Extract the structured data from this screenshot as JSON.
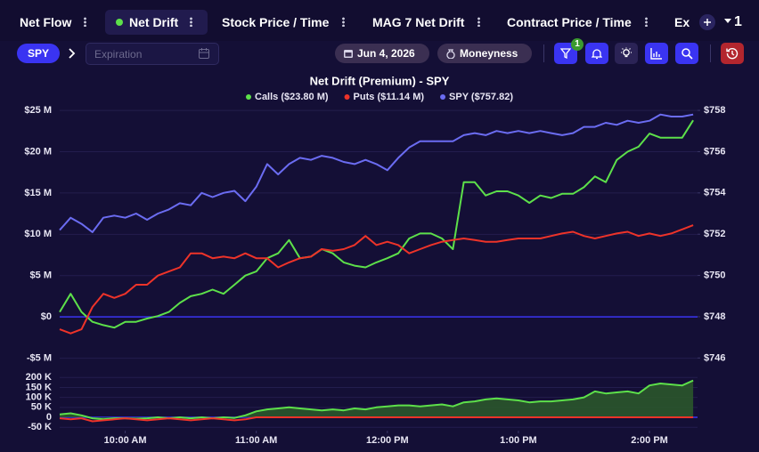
{
  "ui": {
    "tabs": [
      "Net Flow",
      "Net Drift",
      "Stock Price / Time",
      "MAG 7 Net Drift",
      "Contract Price / Time",
      "Ex"
    ],
    "tab_count": "1",
    "ticker": "SPY",
    "expiration_placeholder": "Expiration",
    "date": "Jun 4, 2026",
    "moneyness": "Moneyness",
    "filter_badge": "1"
  },
  "chart_data": [
    {
      "type": "line",
      "title": "Net Drift (Premium) - SPY",
      "grid": true,
      "legend": "top",
      "zero_line_color": "#3a34f2",
      "x": [
        570,
        575,
        580,
        585,
        590,
        595,
        600,
        605,
        610,
        615,
        620,
        625,
        630,
        635,
        640,
        645,
        650,
        655,
        660,
        665,
        670,
        675,
        680,
        685,
        690,
        695,
        700,
        705,
        710,
        715,
        720,
        725,
        730,
        735,
        740,
        745,
        750,
        755,
        760,
        765,
        770,
        775,
        780,
        785,
        790,
        795,
        800,
        805,
        810,
        815,
        820,
        825,
        830,
        835,
        840,
        845,
        850,
        855,
        860
      ],
      "xlim": [
        570,
        862
      ],
      "ylim": [
        -5.8,
        26.3
      ],
      "yticks": [
        {
          "value": -5,
          "label": "-$5 M"
        },
        {
          "value": 0,
          "label": "$0"
        },
        {
          "value": 5,
          "label": "$5 M"
        },
        {
          "value": 10,
          "label": "$10 M"
        },
        {
          "value": 15,
          "label": "$15 M"
        },
        {
          "value": 20,
          "label": "$20 M"
        },
        {
          "value": 25,
          "label": "$25 M"
        }
      ],
      "y2lim": [
        745.67,
        758.52
      ],
      "y2ticks": [
        {
          "value": 746,
          "label": "$746"
        },
        {
          "value": 748,
          "label": "$748"
        },
        {
          "value": 750,
          "label": "$750"
        },
        {
          "value": 752,
          "label": "$752"
        },
        {
          "value": 754,
          "label": "$754"
        },
        {
          "value": 756,
          "label": "$756"
        },
        {
          "value": 758,
          "label": "$758"
        }
      ],
      "series": [
        {
          "name": "Calls ($23.80 M)",
          "color": "#5de04a",
          "values": [
            0.6,
            2.8,
            0.6,
            -0.6,
            -1,
            -1.3,
            -0.6,
            -0.6,
            -0.2,
            0.1,
            0.6,
            1.7,
            2.5,
            2.8,
            3.3,
            2.8,
            3.9,
            5.0,
            5.5,
            7.1,
            7.7,
            9.3,
            7.1,
            7.3,
            8.2,
            7.7,
            6.6,
            6.2,
            6.0,
            6.6,
            7.1,
            7.7,
            9.5,
            10.1,
            10.1,
            9.5,
            8.2,
            16.3,
            16.3,
            14.7,
            15.2,
            15.2,
            14.7,
            13.8,
            14.7,
            14.4,
            14.9,
            14.9,
            15.7,
            17.0,
            16.3,
            19.0,
            20.0,
            20.6,
            22.2,
            21.7,
            21.7,
            21.7,
            23.8
          ]
        },
        {
          "name": "Puts ($11.14 M)",
          "color": "#ee3329",
          "values": [
            -1.5,
            -2.0,
            -1.5,
            1.2,
            2.8,
            2.3,
            2.8,
            3.9,
            3.9,
            5.0,
            5.5,
            6.0,
            7.7,
            7.7,
            7.1,
            7.3,
            7.1,
            7.7,
            7.1,
            7.1,
            6.0,
            6.6,
            7.1,
            7.3,
            8.2,
            8.0,
            8.2,
            8.7,
            9.8,
            8.7,
            9.1,
            8.7,
            7.7,
            8.2,
            8.7,
            9.1,
            9.3,
            9.5,
            9.3,
            9.1,
            9.1,
            9.3,
            9.5,
            9.5,
            9.5,
            9.8,
            10.1,
            10.3,
            9.8,
            9.5,
            9.8,
            10.1,
            10.3,
            9.8,
            10.1,
            9.8,
            10.1,
            10.6,
            11.1
          ]
        },
        {
          "name": "SPY ($757.82)",
          "color": "#6b6cf2",
          "axis": "y2",
          "values": [
            752.2,
            752.8,
            752.5,
            752.1,
            752.8,
            752.9,
            752.8,
            753.0,
            752.7,
            753.0,
            753.2,
            753.5,
            753.4,
            754.0,
            753.8,
            754.0,
            754.1,
            753.6,
            754.3,
            755.4,
            754.9,
            755.4,
            755.7,
            755.6,
            755.8,
            755.7,
            755.5,
            755.4,
            755.6,
            755.4,
            755.1,
            755.7,
            756.2,
            756.5,
            756.5,
            756.5,
            756.5,
            756.8,
            756.9,
            756.8,
            757.0,
            756.9,
            757.0,
            756.9,
            757.0,
            756.9,
            756.8,
            756.9,
            757.2,
            757.2,
            757.4,
            757.3,
            757.5,
            757.4,
            757.5,
            757.8,
            757.7,
            757.7,
            757.8
          ]
        }
      ]
    },
    {
      "type": "area",
      "grid": true,
      "zero_line_color": "#3a34f2",
      "x": [
        570,
        575,
        580,
        585,
        590,
        595,
        600,
        605,
        610,
        615,
        620,
        625,
        630,
        635,
        640,
        645,
        650,
        655,
        660,
        665,
        670,
        675,
        680,
        685,
        690,
        695,
        700,
        705,
        710,
        715,
        720,
        725,
        730,
        735,
        740,
        745,
        750,
        755,
        760,
        765,
        770,
        775,
        780,
        785,
        790,
        795,
        800,
        805,
        810,
        815,
        820,
        825,
        830,
        835,
        840,
        845,
        850,
        855,
        860
      ],
      "xlim": [
        570,
        862
      ],
      "xticks": [
        {
          "value": 600,
          "label": "10:00 AM"
        },
        {
          "value": 660,
          "label": "11:00 AM"
        },
        {
          "value": 720,
          "label": "12:00 PM"
        },
        {
          "value": 780,
          "label": "1:00 PM"
        },
        {
          "value": 840,
          "label": "2:00 PM"
        }
      ],
      "ylim": [
        -58,
        228
      ],
      "yticks": [
        {
          "value": -50,
          "label": "-50 K"
        },
        0,
        {
          "value": 50,
          "label": "50 K"
        },
        {
          "value": 100,
          "label": "100 K"
        },
        {
          "value": 150,
          "label": "150 K"
        },
        {
          "value": 200,
          "label": "200 K"
        }
      ],
      "series": [
        {
          "color": "#5de04a",
          "fill": "#2c5a2a",
          "values": [
            15,
            20,
            10,
            -5,
            -10,
            -5,
            -5,
            -8,
            -5,
            0,
            -5,
            0,
            -5,
            0,
            -5,
            0,
            -3,
            10,
            30,
            40,
            45,
            50,
            45,
            40,
            35,
            40,
            35,
            45,
            40,
            50,
            55,
            60,
            60,
            55,
            60,
            65,
            55,
            75,
            80,
            90,
            95,
            90,
            85,
            75,
            80,
            80,
            85,
            90,
            100,
            130,
            120,
            125,
            130,
            120,
            160,
            170,
            165,
            160,
            185
          ]
        },
        {
          "color": "#ee3329",
          "values": [
            -5,
            -10,
            -5,
            -20,
            -15,
            -10,
            -5,
            -10,
            -15,
            -10,
            -5,
            -10,
            -15,
            -10,
            -5,
            -10,
            -15,
            -10,
            0,
            0,
            0,
            0,
            0,
            0,
            0,
            0,
            0,
            0,
            0,
            0,
            0,
            0,
            0,
            0,
            0,
            0,
            0,
            0,
            0,
            0,
            0,
            0,
            0,
            0,
            0,
            0,
            0,
            0,
            0,
            0,
            0,
            0,
            0,
            0,
            0,
            0,
            0,
            0,
            0
          ]
        }
      ]
    }
  ]
}
